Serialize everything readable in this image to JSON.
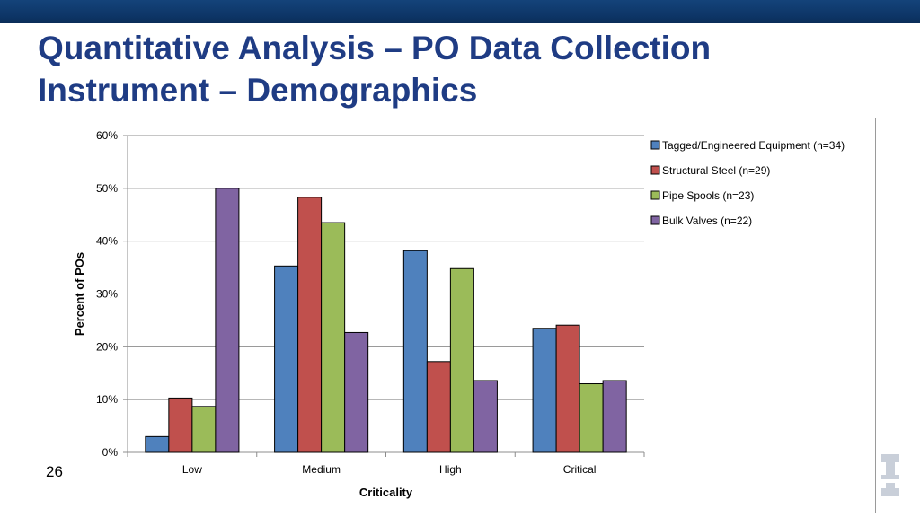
{
  "slide": {
    "title_line1": "Quantitative Analysis – PO Data Collection",
    "title_line2": "Instrument – Demographics",
    "page_number": "26"
  },
  "chart_data": {
    "type": "bar",
    "title": "",
    "xlabel": "Criticality",
    "ylabel": "Percent of POs",
    "categories": [
      "Low",
      "Medium",
      "High",
      "Critical"
    ],
    "ylim": [
      0,
      60
    ],
    "ytick_labels": [
      "0%",
      "10%",
      "20%",
      "30%",
      "40%",
      "50%",
      "60%"
    ],
    "ytick_values": [
      0,
      10,
      20,
      30,
      40,
      50,
      60
    ],
    "grid": true,
    "legend_position": "top-right",
    "series": [
      {
        "name": "Tagged/Engineered Equipment (n=34)",
        "color": "#4f81bd",
        "values": [
          3,
          35.3,
          38.2,
          23.5
        ]
      },
      {
        "name": "Structural Steel (n=29)",
        "color": "#c0504d",
        "values": [
          10.3,
          48.3,
          17.2,
          24.1
        ]
      },
      {
        "name": "Pipe Spools (n=23)",
        "color": "#9bbb59",
        "values": [
          8.7,
          43.5,
          34.8,
          13
        ]
      },
      {
        "name": "Bulk Valves (n=22)",
        "color": "#8064a2",
        "values": [
          50,
          22.7,
          13.6,
          13.6
        ]
      }
    ]
  },
  "colors": {
    "title": "#1f3c84",
    "top_bar": "#0d3566"
  },
  "icons": {
    "logo": "university-logo-icon"
  }
}
